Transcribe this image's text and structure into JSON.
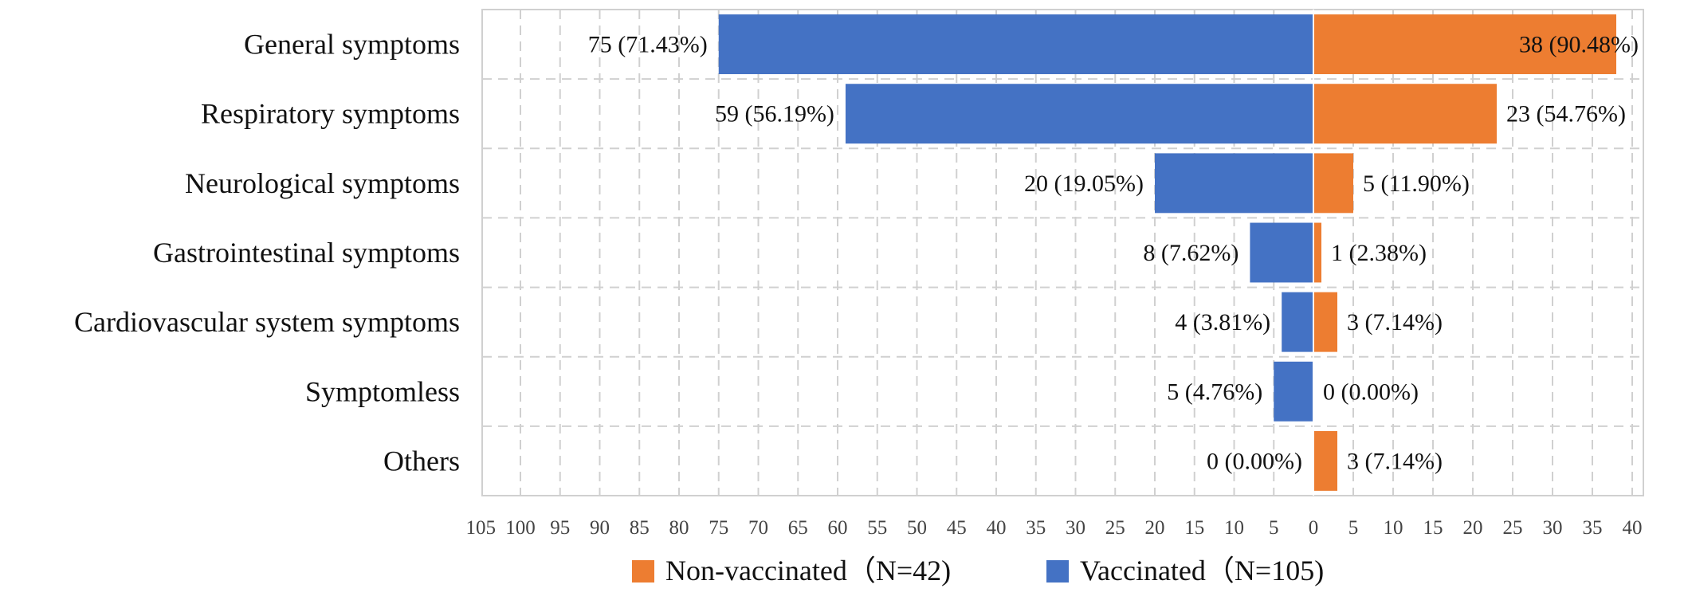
{
  "chart_data": {
    "type": "bar",
    "orientation": "horizontal-butterfly",
    "categories": [
      "General symptoms",
      "Respiratory symptoms",
      "Neurological symptoms",
      "Gastrointestinal symptoms",
      "Cardiovascular system symptoms",
      "Symptomless",
      "Others"
    ],
    "series": [
      {
        "name": "Vaccinated（N=105)",
        "side": "left",
        "color": "#4472C4",
        "values": [
          75,
          59,
          20,
          8,
          4,
          5,
          0
        ],
        "labels": [
          "75 (71.43%)",
          "59 (56.19%)",
          "20 (19.05%)",
          "8 (7.62%)",
          "4 (3.81%)",
          "5 (4.76%)",
          "0 (0.00%)"
        ]
      },
      {
        "name": "Non-vaccinated（N=42)",
        "side": "right",
        "color": "#ED7D31",
        "values": [
          38,
          23,
          5,
          1,
          3,
          0,
          3
        ],
        "labels": [
          "38 (90.48%)",
          "23 (54.76%)",
          "5 (11.90%)",
          "1 (2.38%)",
          "3 (7.14%)",
          "0 (0.00%)",
          "3 (7.14%)"
        ]
      }
    ],
    "left_range": [
      0,
      105
    ],
    "right_range": [
      0,
      40
    ],
    "left_ticks": [
      "105",
      "100",
      "95",
      "90",
      "85",
      "80",
      "75",
      "70",
      "65",
      "60",
      "55",
      "50",
      "45",
      "40",
      "35",
      "30",
      "25",
      "20",
      "15",
      "10",
      "5",
      "0"
    ],
    "right_ticks": [
      "5",
      "10",
      "15",
      "20",
      "25",
      "30",
      "35",
      "40"
    ],
    "grid": true,
    "legend": {
      "position": "bottom",
      "order": [
        "Non-vaccinated（N=42)",
        "Vaccinated（N=105)"
      ]
    }
  }
}
